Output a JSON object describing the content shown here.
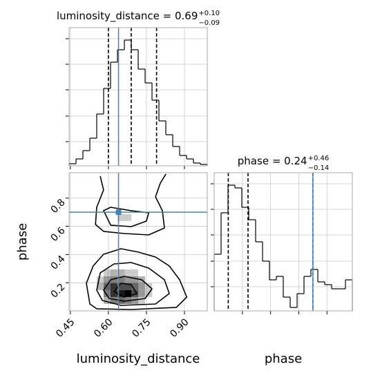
{
  "chart_data": [
    {
      "type": "histogram",
      "title": "luminosity_distance = 0.69",
      "title_sup": "+0.10",
      "title_sub": "−0.09",
      "bins": [
        0.445,
        0.4723,
        0.4995,
        0.5268,
        0.554,
        0.5813,
        0.6085,
        0.6358,
        0.663,
        0.6903,
        0.7175,
        0.7448,
        0.772,
        0.7993,
        0.8265,
        0.8538,
        0.881,
        0.9083,
        0.9355,
        0.9628,
        0.99
      ],
      "counts": [
        3,
        10,
        22,
        40,
        75,
        112,
        150,
        168,
        182,
        168,
        140,
        120,
        95,
        65,
        45,
        28,
        15,
        10,
        4,
        2
      ],
      "xlim": [
        0.445,
        0.99
      ],
      "xticks": [
        0.45,
        0.6,
        0.75,
        0.9
      ],
      "ylim": [
        0,
        200
      ],
      "yticks": [
        35,
        72,
        110,
        147,
        184
      ],
      "quantiles": [
        0.6,
        0.69,
        0.79
      ],
      "truth": 0.64,
      "color": "#000000",
      "truth_color": "#4682b4",
      "grid": true
    },
    {
      "type": "hist2d",
      "xlabel": "luminosity_distance",
      "ylabel": "phase",
      "xlim": [
        0.445,
        0.99
      ],
      "xticks": [
        {
          "value": 0.45,
          "label": "0.45"
        },
        {
          "value": 0.6,
          "label": "0.60"
        },
        {
          "value": 0.75,
          "label": "0.75"
        },
        {
          "value": 0.9,
          "label": "0.90"
        }
      ],
      "ylim": [
        0,
        0.98
      ],
      "yticks": [
        0.2,
        0.4,
        0.6,
        0.8
      ],
      "cell_size": [
        0.02725,
        0.049
      ],
      "cells": [
        [
          0.595,
          0.123,
          0.5
        ],
        [
          0.622,
          0.123,
          0.8
        ],
        [
          0.65,
          0.123,
          0.9
        ],
        [
          0.677,
          0.123,
          1.0
        ],
        [
          0.704,
          0.123,
          0.7
        ],
        [
          0.731,
          0.123,
          0.4
        ],
        [
          0.759,
          0.123,
          0.2
        ],
        [
          0.568,
          0.172,
          0.3
        ],
        [
          0.595,
          0.172,
          0.6
        ],
        [
          0.622,
          0.172,
          0.8
        ],
        [
          0.65,
          0.172,
          0.7
        ],
        [
          0.677,
          0.172,
          0.7
        ],
        [
          0.704,
          0.172,
          0.6
        ],
        [
          0.731,
          0.172,
          0.4
        ],
        [
          0.759,
          0.172,
          0.2
        ],
        [
          0.568,
          0.221,
          0.2
        ],
        [
          0.595,
          0.221,
          0.4
        ],
        [
          0.622,
          0.221,
          0.5
        ],
        [
          0.65,
          0.221,
          0.5
        ],
        [
          0.677,
          0.221,
          0.4
        ],
        [
          0.704,
          0.221,
          0.4
        ],
        [
          0.731,
          0.221,
          0.3
        ],
        [
          0.595,
          0.074,
          0.3
        ],
        [
          0.622,
          0.074,
          0.5
        ],
        [
          0.65,
          0.074,
          0.6
        ],
        [
          0.677,
          0.074,
          0.5
        ],
        [
          0.704,
          0.074,
          0.4
        ],
        [
          0.731,
          0.074,
          0.2
        ],
        [
          0.595,
          0.27,
          0.2
        ],
        [
          0.622,
          0.27,
          0.3
        ],
        [
          0.65,
          0.27,
          0.3
        ],
        [
          0.677,
          0.27,
          0.2
        ],
        [
          0.704,
          0.27,
          0.2
        ],
        [
          0.65,
          0.662,
          0.2
        ],
        [
          0.677,
          0.662,
          0.2
        ]
      ],
      "contours": [
        {
          "closed": true,
          "x": [
            0.527,
            0.513,
            0.54,
            0.581,
            0.65,
            0.718,
            0.786,
            0.84,
            0.881,
            0.909,
            0.868,
            0.69,
            0.554
          ],
          "y": [
            0.049,
            0.196,
            0.319,
            0.402,
            0.441,
            0.417,
            0.382,
            0.319,
            0.221,
            0.098,
            0.025,
            0.01,
            0.015
          ]
        },
        {
          "closed": true,
          "x": [
            0.554,
            0.568,
            0.622,
            0.69,
            0.759,
            0.821,
            0.84,
            0.786,
            0.65,
            0.576
          ],
          "y": [
            0.147,
            0.27,
            0.333,
            0.343,
            0.304,
            0.221,
            0.123,
            0.049,
            0.039,
            0.074
          ]
        },
        {
          "closed": true,
          "x": [
            0.581,
            0.609,
            0.663,
            0.731,
            0.772,
            0.745,
            0.663,
            0.603
          ],
          "y": [
            0.147,
            0.221,
            0.245,
            0.221,
            0.157,
            0.088,
            0.069,
            0.088
          ]
        },
        {
          "closed": true,
          "x": [
            0.622,
            0.65,
            0.69,
            0.712,
            0.663
          ],
          "y": [
            0.137,
            0.196,
            0.186,
            0.123,
            0.098
          ]
        },
        {
          "closed": false,
          "x": [
            0.568,
            0.581,
            0.554,
            0.549,
            0.581,
            0.663,
            0.759,
            0.821,
            0.813,
            0.786,
            0.805,
            0.827
          ],
          "y": [
            0.956,
            0.858,
            0.735,
            0.613,
            0.564,
            0.549,
            0.539,
            0.588,
            0.711,
            0.809,
            0.907,
            0.971
          ]
        },
        {
          "closed": true,
          "x": [
            0.581,
            0.609,
            0.69,
            0.759,
            0.75,
            0.69,
            0.609
          ],
          "y": [
            0.711,
            0.735,
            0.711,
            0.696,
            0.637,
            0.598,
            0.608
          ]
        }
      ],
      "truth_x": 0.64,
      "truth_y": 0.7,
      "color": "#000000",
      "truth_color": "#4682b4",
      "grid": true
    },
    {
      "type": "histogram",
      "title": "phase = 0.24",
      "title_sup": "+0.46",
      "title_sub": "−0.14",
      "xlabel": "phase",
      "bins": [
        0,
        0.049,
        0.098,
        0.147,
        0.196,
        0.245,
        0.294,
        0.343,
        0.392,
        0.441,
        0.49,
        0.539,
        0.588,
        0.637,
        0.686,
        0.735,
        0.784,
        0.833,
        0.882,
        0.931,
        0.98
      ],
      "counts": [
        82,
        142,
        182,
        178,
        150,
        132,
        100,
        72,
        45,
        50,
        20,
        5,
        25,
        50,
        60,
        42,
        38,
        32,
        32,
        45
      ],
      "xlim": [
        0,
        0.98
      ],
      "xticks": [
        0.2,
        0.4,
        0.6,
        0.8
      ],
      "ylim": [
        0,
        200
      ],
      "yticks": [
        35,
        72,
        110,
        147,
        184
      ],
      "quantiles": [
        0.1,
        0.24,
        0.7
      ],
      "truth": 0.7,
      "color": "#000000",
      "truth_color": "#4682b4",
      "grid": true
    }
  ]
}
